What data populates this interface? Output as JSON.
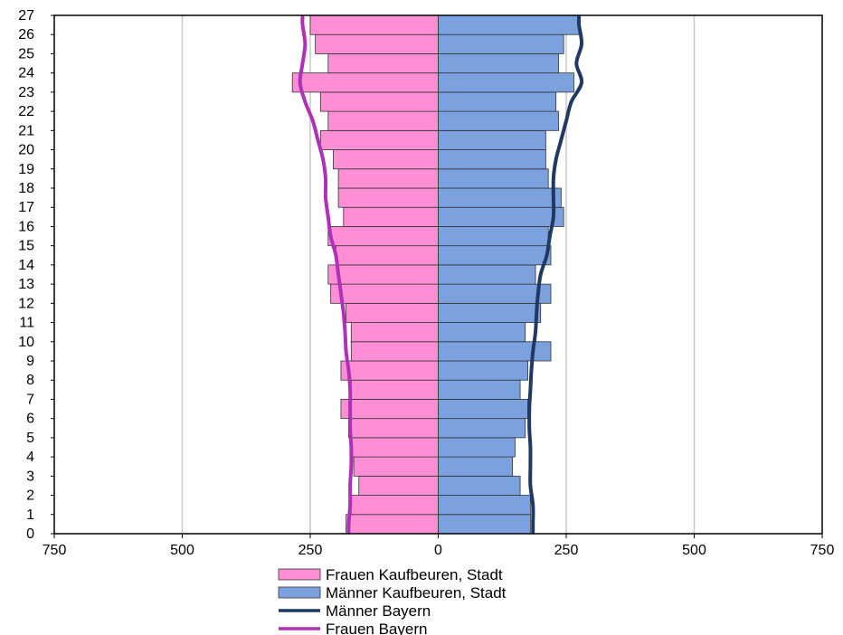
{
  "chart_data": {
    "type": "bar",
    "subtype": "population-pyramid",
    "orientation": "horizontal",
    "title": "",
    "xlabel": "",
    "ylabel": "",
    "categories": [
      "0",
      "1",
      "2",
      "3",
      "4",
      "5",
      "6",
      "7",
      "8",
      "9",
      "10",
      "11",
      "12",
      "13",
      "14",
      "15",
      "16",
      "17",
      "18",
      "19",
      "20",
      "21",
      "22",
      "23",
      "24",
      "25",
      "26"
    ],
    "x_ticks": [
      -750,
      -500,
      -250,
      0,
      250,
      500,
      750
    ],
    "x_tick_labels": [
      "750",
      "500",
      "250",
      "0",
      "250",
      "500",
      "750"
    ],
    "y_ticks": [
      "0",
      "1",
      "2",
      "3",
      "4",
      "5",
      "6",
      "7",
      "8",
      "9",
      "10",
      "11",
      "12",
      "13",
      "14",
      "15",
      "16",
      "17",
      "18",
      "19",
      "20",
      "21",
      "22",
      "23",
      "24",
      "25",
      "26",
      "27"
    ],
    "xlim": [
      -750,
      750
    ],
    "ylim": [
      0,
      27
    ],
    "grid": "vertical",
    "legend_position": "bottom",
    "series": [
      {
        "name": "Frauen Kaufbeuren, Stadt",
        "kind": "bar",
        "side": "left",
        "color": "#ff8fd4",
        "values": [
          180,
          170,
          155,
          165,
          170,
          175,
          190,
          170,
          190,
          170,
          170,
          180,
          210,
          215,
          200,
          215,
          185,
          195,
          195,
          205,
          230,
          215,
          230,
          285,
          215,
          240,
          250
        ]
      },
      {
        "name": "Männer Kaufbeuren, Stadt",
        "kind": "bar",
        "side": "right",
        "color": "#7ba1de",
        "values": [
          180,
          180,
          160,
          145,
          150,
          170,
          175,
          160,
          175,
          220,
          170,
          200,
          220,
          190,
          220,
          215,
          245,
          240,
          215,
          210,
          210,
          235,
          230,
          265,
          235,
          245,
          275
        ]
      },
      {
        "name": "Männer Bayern",
        "kind": "line",
        "side": "right",
        "color": "#1f3864",
        "values": [
          185,
          185,
          180,
          180,
          180,
          178,
          178,
          180,
          182,
          185,
          190,
          192,
          195,
          200,
          212,
          218,
          225,
          225,
          225,
          230,
          240,
          250,
          260,
          280,
          270,
          280,
          275
        ]
      },
      {
        "name": "Frauen Bayern",
        "kind": "line",
        "side": "left",
        "color": "#b030b8",
        "values": [
          175,
          172,
          172,
          170,
          170,
          172,
          172,
          172,
          175,
          180,
          182,
          185,
          190,
          195,
          200,
          210,
          215,
          220,
          220,
          225,
          235,
          245,
          260,
          270,
          265,
          260,
          265
        ]
      }
    ]
  }
}
